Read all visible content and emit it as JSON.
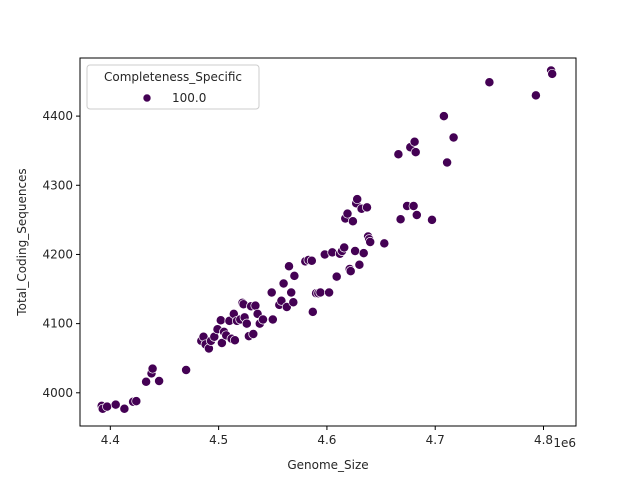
{
  "chart_data": {
    "type": "scatter",
    "title": "",
    "xlabel": "Genome_Size",
    "ylabel": "Total_Coding_Sequences",
    "x_offset_label": "1e6",
    "xlim": [
      4.372,
      4.83
    ],
    "ylim": [
      3952,
      4484
    ],
    "x_ticks": [
      4.4,
      4.5,
      4.6,
      4.7,
      4.8
    ],
    "x_tick_labels": [
      "4.4",
      "4.5",
      "4.6",
      "4.7",
      "4.8"
    ],
    "y_ticks": [
      4000,
      4100,
      4200,
      4300,
      4400
    ],
    "y_tick_labels": [
      "4000",
      "4100",
      "4200",
      "4300",
      "4400"
    ],
    "grid": false,
    "legend": {
      "title": "Completeness_Specific",
      "position": "upper left",
      "entries": [
        {
          "label": "100.0",
          "color": "#440154"
        }
      ]
    },
    "marker_color": "#440154",
    "series": [
      {
        "name": "100.0",
        "points": [
          [
            4.392,
            3981
          ],
          [
            4.393,
            3977
          ],
          [
            4.397,
            3980
          ],
          [
            4.405,
            3983
          ],
          [
            4.413,
            3977
          ],
          [
            4.421,
            3987
          ],
          [
            4.424,
            3988
          ],
          [
            4.433,
            4016
          ],
          [
            4.438,
            4028
          ],
          [
            4.439,
            4035
          ],
          [
            4.445,
            4017
          ],
          [
            4.47,
            4033
          ],
          [
            4.484,
            4075
          ],
          [
            4.486,
            4081
          ],
          [
            4.488,
            4070
          ],
          [
            4.491,
            4064
          ],
          [
            4.493,
            4075
          ],
          [
            4.496,
            4081
          ],
          [
            4.499,
            4092
          ],
          [
            4.502,
            4105
          ],
          [
            4.503,
            4072
          ],
          [
            4.505,
            4088
          ],
          [
            4.507,
            4083
          ],
          [
            4.51,
            4104
          ],
          [
            4.512,
            4078
          ],
          [
            4.514,
            4114
          ],
          [
            4.515,
            4076
          ],
          [
            4.517,
            4104
          ],
          [
            4.52,
            4106
          ],
          [
            4.522,
            4130
          ],
          [
            4.523,
            4128
          ],
          [
            4.524,
            4109
          ],
          [
            4.526,
            4100
          ],
          [
            4.528,
            4082
          ],
          [
            4.53,
            4125
          ],
          [
            4.532,
            4085
          ],
          [
            4.534,
            4126
          ],
          [
            4.536,
            4114
          ],
          [
            4.538,
            4100
          ],
          [
            4.541,
            4106
          ],
          [
            4.549,
            4145
          ],
          [
            4.55,
            4106
          ],
          [
            4.556,
            4127
          ],
          [
            4.558,
            4133
          ],
          [
            4.56,
            4158
          ],
          [
            4.563,
            4124
          ],
          [
            4.565,
            4183
          ],
          [
            4.567,
            4145
          ],
          [
            4.569,
            4131
          ],
          [
            4.57,
            4169
          ],
          [
            4.58,
            4190
          ],
          [
            4.583,
            4192
          ],
          [
            4.586,
            4191
          ],
          [
            4.587,
            4117
          ],
          [
            4.59,
            4144
          ],
          [
            4.592,
            4144
          ],
          [
            4.594,
            4145
          ],
          [
            4.598,
            4200
          ],
          [
            4.602,
            4145
          ],
          [
            4.605,
            4203
          ],
          [
            4.609,
            4168
          ],
          [
            4.612,
            4201
          ],
          [
            4.614,
            4205
          ],
          [
            4.616,
            4210
          ],
          [
            4.617,
            4252
          ],
          [
            4.619,
            4259
          ],
          [
            4.621,
            4179
          ],
          [
            4.622,
            4176
          ],
          [
            4.624,
            4248
          ],
          [
            4.626,
            4205
          ],
          [
            4.627,
            4274
          ],
          [
            4.628,
            4280
          ],
          [
            4.63,
            4185
          ],
          [
            4.632,
            4266
          ],
          [
            4.634,
            4202
          ],
          [
            4.637,
            4268
          ],
          [
            4.638,
            4226
          ],
          [
            4.639,
            4222
          ],
          [
            4.64,
            4218
          ],
          [
            4.653,
            4216
          ],
          [
            4.666,
            4345
          ],
          [
            4.668,
            4251
          ],
          [
            4.674,
            4270
          ],
          [
            4.677,
            4355
          ],
          [
            4.68,
            4270
          ],
          [
            4.681,
            4363
          ],
          [
            4.682,
            4348
          ],
          [
            4.683,
            4257
          ],
          [
            4.697,
            4250
          ],
          [
            4.708,
            4400
          ],
          [
            4.711,
            4333
          ],
          [
            4.717,
            4369
          ],
          [
            4.75,
            4449
          ],
          [
            4.793,
            4430
          ],
          [
            4.807,
            4466
          ],
          [
            4.808,
            4461
          ]
        ]
      }
    ]
  }
}
